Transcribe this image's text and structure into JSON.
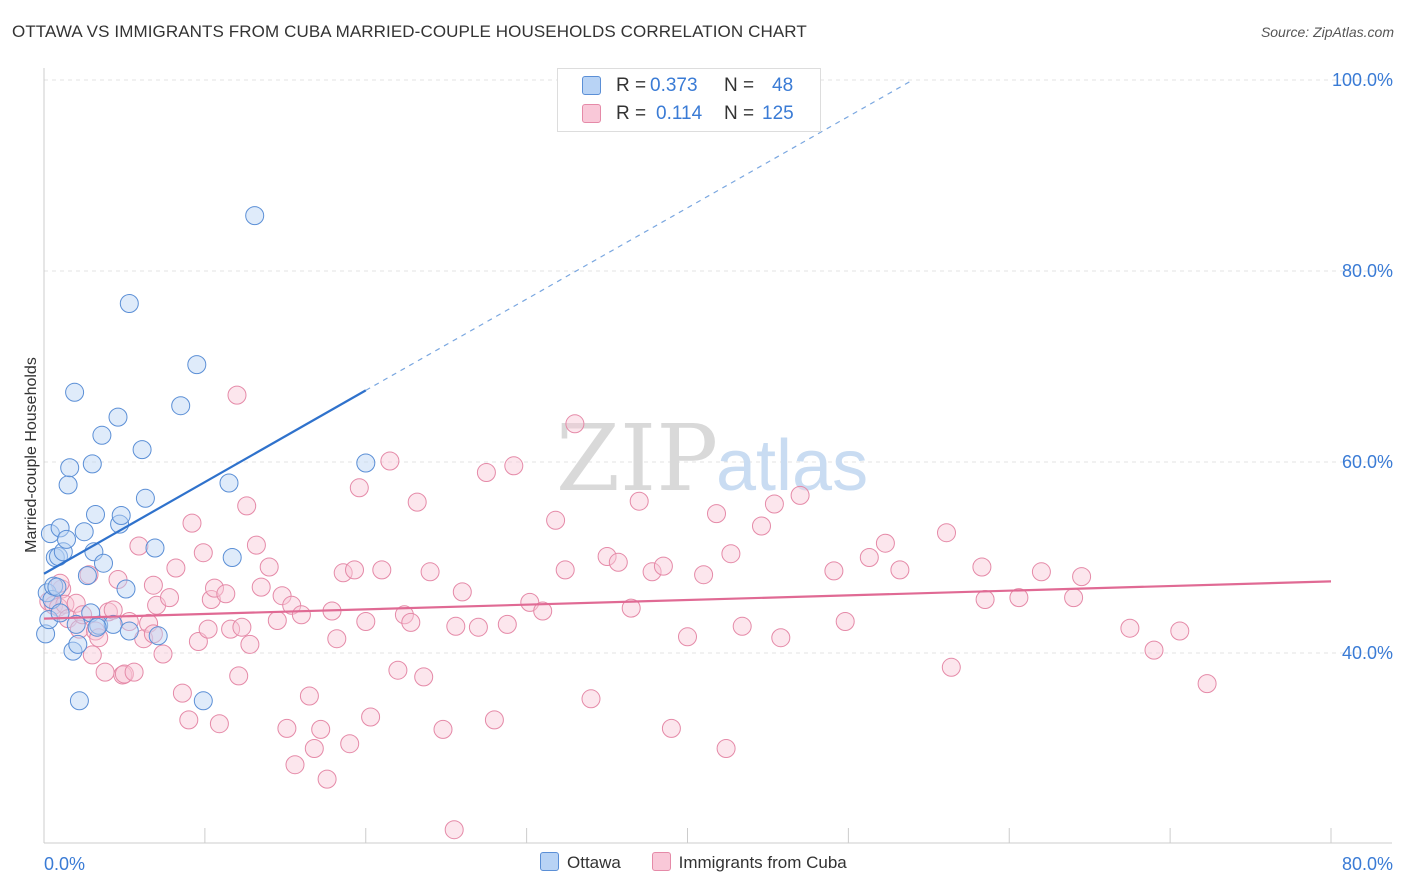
{
  "header": {
    "title": "OTTAWA VS IMMIGRANTS FROM CUBA MARRIED-COUPLE HOUSEHOLDS CORRELATION CHART",
    "source": "Source: ZipAtlas.com"
  },
  "watermark": {
    "zip": "ZIP",
    "atlas": "atlas"
  },
  "legend": {
    "r_label": "R =",
    "n_label": "N =",
    "items": [
      {
        "name": "Ottawa",
        "r": "0.373",
        "n": "48",
        "fill": "#b8d3f5",
        "stroke": "#5b8fd6"
      },
      {
        "name": "Immigrants from Cuba",
        "r": "0.114",
        "n": "125",
        "fill": "#f9c8d8",
        "stroke": "#e58aa8"
      }
    ]
  },
  "chart_data": {
    "type": "scatter",
    "title": "OTTAWA VS IMMIGRANTS FROM CUBA MARRIED-COUPLE HOUSEHOLDS CORRELATION CHART",
    "xlabel": "",
    "ylabel": "Married-couple Households",
    "xlim": [
      0,
      80
    ],
    "ylim": [
      20,
      102
    ],
    "x_tick_labels": [
      "0.0%",
      "80.0%"
    ],
    "y_tick_labels": [
      "40.0%",
      "60.0%",
      "80.0%",
      "100.0%"
    ],
    "y_tick_values": [
      40,
      60,
      80,
      100
    ],
    "grid": true,
    "series": [
      {
        "name": "Ottawa",
        "color": "#5b8fd6",
        "fill": "#b8d3f5",
        "trend": {
          "x0": 0.0,
          "y0": 48.3,
          "x1": 20.0,
          "y1": 67.5,
          "dash_to_x": 54.0,
          "dash_to_y": 100.0,
          "color": "#2f72cc"
        },
        "points": [
          [
            0.1,
            42.0
          ],
          [
            0.2,
            46.3
          ],
          [
            0.3,
            43.5
          ],
          [
            0.4,
            52.5
          ],
          [
            0.5,
            45.6
          ],
          [
            0.6,
            47.0
          ],
          [
            0.7,
            50.0
          ],
          [
            0.9,
            50.1
          ],
          [
            1.0,
            53.1
          ],
          [
            1.2,
            50.6
          ],
          [
            1.4,
            51.9
          ],
          [
            1.5,
            57.6
          ],
          [
            1.6,
            59.4
          ],
          [
            1.8,
            40.2
          ],
          [
            1.9,
            67.3
          ],
          [
            2.0,
            43.0
          ],
          [
            2.1,
            40.9
          ],
          [
            2.2,
            35.0
          ],
          [
            2.5,
            52.7
          ],
          [
            2.7,
            48.1
          ],
          [
            2.9,
            44.2
          ],
          [
            3.0,
            59.8
          ],
          [
            3.1,
            50.6
          ],
          [
            3.2,
            54.5
          ],
          [
            3.4,
            42.9
          ],
          [
            3.6,
            62.8
          ],
          [
            3.7,
            49.4
          ],
          [
            4.3,
            43.0
          ],
          [
            4.6,
            64.7
          ],
          [
            4.7,
            53.5
          ],
          [
            4.8,
            54.4
          ],
          [
            5.1,
            46.7
          ],
          [
            5.3,
            76.6
          ],
          [
            5.3,
            42.3
          ],
          [
            6.1,
            61.3
          ],
          [
            6.3,
            56.2
          ],
          [
            6.9,
            51.0
          ],
          [
            7.1,
            41.8
          ],
          [
            8.5,
            65.9
          ],
          [
            9.5,
            70.2
          ],
          [
            9.9,
            35.0
          ],
          [
            11.5,
            57.8
          ],
          [
            11.7,
            50.0
          ],
          [
            13.1,
            85.8
          ],
          [
            20.0,
            59.9
          ],
          [
            1.0,
            44.2
          ],
          [
            0.8,
            46.9
          ],
          [
            3.3,
            42.7
          ]
        ]
      },
      {
        "name": "Immigrants from Cuba",
        "color": "#e58aa8",
        "fill": "#f9c8d8",
        "trend": {
          "x0": 0.0,
          "y0": 43.6,
          "x1": 80.0,
          "y1": 47.5,
          "color": "#e06a94"
        },
        "points": [
          [
            0.3,
            45.4
          ],
          [
            0.6,
            45.0
          ],
          [
            0.9,
            44.8
          ],
          [
            1.1,
            46.7
          ],
          [
            1.3,
            45.1
          ],
          [
            1.5,
            43.6
          ],
          [
            2.0,
            45.2
          ],
          [
            2.2,
            42.5
          ],
          [
            2.8,
            48.2
          ],
          [
            3.0,
            39.8
          ],
          [
            3.2,
            42.3
          ],
          [
            3.4,
            41.6
          ],
          [
            3.8,
            38.0
          ],
          [
            4.0,
            44.3
          ],
          [
            4.3,
            44.5
          ],
          [
            4.6,
            47.7
          ],
          [
            4.9,
            37.7
          ],
          [
            5.0,
            37.8
          ],
          [
            5.3,
            43.3
          ],
          [
            5.6,
            38.0
          ],
          [
            5.9,
            51.2
          ],
          [
            6.2,
            41.5
          ],
          [
            6.5,
            43.1
          ],
          [
            6.8,
            47.1
          ],
          [
            7.0,
            45.0
          ],
          [
            7.4,
            39.9
          ],
          [
            7.8,
            45.8
          ],
          [
            8.2,
            48.9
          ],
          [
            8.6,
            35.8
          ],
          [
            9.0,
            33.0
          ],
          [
            9.2,
            53.6
          ],
          [
            9.6,
            41.2
          ],
          [
            9.9,
            50.5
          ],
          [
            10.2,
            42.5
          ],
          [
            10.4,
            45.6
          ],
          [
            10.6,
            46.8
          ],
          [
            10.9,
            32.6
          ],
          [
            11.3,
            46.2
          ],
          [
            11.6,
            42.5
          ],
          [
            12.0,
            67.0
          ],
          [
            12.3,
            42.7
          ],
          [
            12.6,
            55.4
          ],
          [
            12.8,
            40.9
          ],
          [
            13.2,
            51.3
          ],
          [
            13.5,
            46.9
          ],
          [
            14.0,
            49.0
          ],
          [
            14.5,
            43.4
          ],
          [
            14.8,
            46.0
          ],
          [
            15.1,
            32.1
          ],
          [
            15.4,
            45.0
          ],
          [
            15.6,
            28.3
          ],
          [
            16.0,
            44.0
          ],
          [
            16.5,
            35.5
          ],
          [
            16.8,
            30.0
          ],
          [
            17.2,
            32.0
          ],
          [
            17.6,
            26.8
          ],
          [
            17.9,
            44.4
          ],
          [
            18.2,
            41.5
          ],
          [
            18.6,
            48.4
          ],
          [
            19.0,
            30.5
          ],
          [
            19.3,
            48.7
          ],
          [
            19.6,
            57.3
          ],
          [
            20.0,
            43.3
          ],
          [
            20.3,
            33.3
          ],
          [
            21.0,
            48.7
          ],
          [
            21.5,
            60.1
          ],
          [
            22.0,
            38.2
          ],
          [
            22.4,
            44.0
          ],
          [
            22.8,
            43.2
          ],
          [
            23.2,
            55.8
          ],
          [
            23.6,
            37.5
          ],
          [
            24.0,
            48.5
          ],
          [
            24.8,
            32.0
          ],
          [
            25.5,
            21.5
          ],
          [
            26.0,
            46.4
          ],
          [
            27.0,
            42.7
          ],
          [
            27.5,
            58.9
          ],
          [
            28.0,
            33.0
          ],
          [
            28.8,
            43.0
          ],
          [
            29.2,
            59.6
          ],
          [
            30.2,
            45.3
          ],
          [
            31.0,
            44.4
          ],
          [
            31.8,
            53.9
          ],
          [
            32.4,
            48.7
          ],
          [
            33.0,
            64.0
          ],
          [
            34.0,
            35.2
          ],
          [
            35.0,
            50.1
          ],
          [
            35.7,
            49.5
          ],
          [
            36.5,
            44.7
          ],
          [
            37.0,
            55.9
          ],
          [
            37.8,
            48.5
          ],
          [
            38.5,
            49.1
          ],
          [
            39.0,
            32.1
          ],
          [
            40.0,
            41.7
          ],
          [
            41.0,
            48.2
          ],
          [
            41.8,
            54.6
          ],
          [
            42.4,
            30.0
          ],
          [
            42.7,
            50.4
          ],
          [
            43.4,
            42.8
          ],
          [
            44.6,
            53.3
          ],
          [
            45.4,
            55.6
          ],
          [
            45.8,
            41.6
          ],
          [
            47.0,
            56.5
          ],
          [
            49.1,
            48.6
          ],
          [
            49.8,
            43.3
          ],
          [
            51.3,
            50.0
          ],
          [
            52.3,
            51.5
          ],
          [
            53.2,
            48.7
          ],
          [
            56.1,
            52.6
          ],
          [
            56.4,
            38.5
          ],
          [
            58.3,
            49.0
          ],
          [
            58.5,
            45.6
          ],
          [
            60.6,
            45.8
          ],
          [
            62.0,
            48.5
          ],
          [
            64.0,
            45.8
          ],
          [
            64.5,
            48.0
          ],
          [
            67.5,
            42.6
          ],
          [
            69.0,
            40.3
          ],
          [
            70.6,
            42.3
          ],
          [
            72.3,
            36.8
          ],
          [
            1.0,
            47.3
          ],
          [
            2.4,
            44.0
          ],
          [
            6.8,
            42.0
          ],
          [
            12.1,
            37.6
          ],
          [
            25.6,
            42.8
          ]
        ]
      }
    ]
  }
}
